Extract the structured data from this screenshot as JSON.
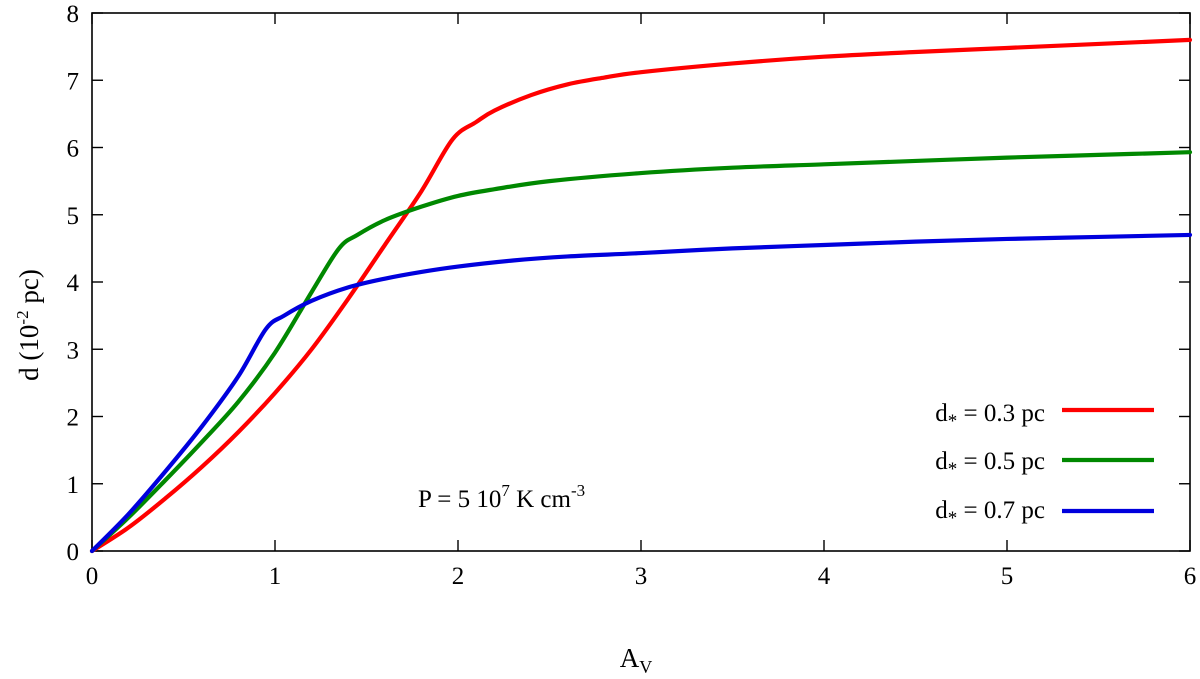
{
  "chart_data": {
    "type": "line",
    "xlabel": {
      "main": "A",
      "sub": "V"
    },
    "ylabel": {
      "pre": "d (10",
      "sup": "-2",
      "post": " pc)"
    },
    "xlim": [
      0,
      6
    ],
    "ylim": [
      0,
      8
    ],
    "xticks": [
      "0",
      "1",
      "2",
      "3",
      "4",
      "5",
      "6"
    ],
    "yticks": [
      "0",
      "1",
      "2",
      "3",
      "4",
      "5",
      "6",
      "7",
      "8"
    ],
    "grid": false,
    "legend_position": "bottom-right",
    "annotation": {
      "pre": "P = 5 10",
      "sup1": "7",
      "mid": " K cm",
      "sup2": "-3"
    },
    "series": [
      {
        "name": "d* = 0.3 pc",
        "legend_main": "d",
        "legend_sub": "*",
        "legend_rest": " = 0.3 pc",
        "color": "#ff0000",
        "x": [
          0,
          0.2,
          0.4,
          0.6,
          0.8,
          1.0,
          1.2,
          1.4,
          1.6,
          1.8,
          1.97,
          2.1,
          2.2,
          2.4,
          2.6,
          2.8,
          3.0,
          3.5,
          4.0,
          4.5,
          5.0,
          5.5,
          6.0
        ],
        "y": [
          0,
          0.35,
          0.78,
          1.25,
          1.77,
          2.35,
          3.0,
          3.75,
          4.55,
          5.35,
          6.12,
          6.38,
          6.55,
          6.78,
          6.94,
          7.04,
          7.12,
          7.25,
          7.35,
          7.42,
          7.48,
          7.54,
          7.6
        ]
      },
      {
        "name": "d* = 0.5 pc",
        "legend_main": "d",
        "legend_sub": "*",
        "legend_rest": " = 0.5 pc",
        "color": "#008800",
        "x": [
          0,
          0.2,
          0.4,
          0.6,
          0.8,
          1.0,
          1.2,
          1.35,
          1.45,
          1.6,
          1.8,
          2.0,
          2.2,
          2.5,
          3.0,
          3.5,
          4.0,
          4.5,
          5.0,
          5.5,
          6.0
        ],
        "y": [
          0,
          0.5,
          1.05,
          1.62,
          2.22,
          2.95,
          3.85,
          4.5,
          4.7,
          4.92,
          5.12,
          5.28,
          5.38,
          5.5,
          5.62,
          5.7,
          5.75,
          5.8,
          5.85,
          5.89,
          5.93
        ]
      },
      {
        "name": "d* = 0.7 pc",
        "legend_main": "d",
        "legend_sub": "*",
        "legend_rest": " = 0.7 pc",
        "color": "#0000dd",
        "x": [
          0,
          0.2,
          0.4,
          0.6,
          0.8,
          0.95,
          1.05,
          1.2,
          1.4,
          1.6,
          1.8,
          2.0,
          2.3,
          2.6,
          3.0,
          3.5,
          4.0,
          4.5,
          5.0,
          5.5,
          6.0
        ],
        "y": [
          0,
          0.55,
          1.18,
          1.85,
          2.6,
          3.3,
          3.5,
          3.72,
          3.92,
          4.05,
          4.15,
          4.23,
          4.32,
          4.38,
          4.43,
          4.5,
          4.55,
          4.6,
          4.64,
          4.67,
          4.7
        ]
      }
    ]
  }
}
